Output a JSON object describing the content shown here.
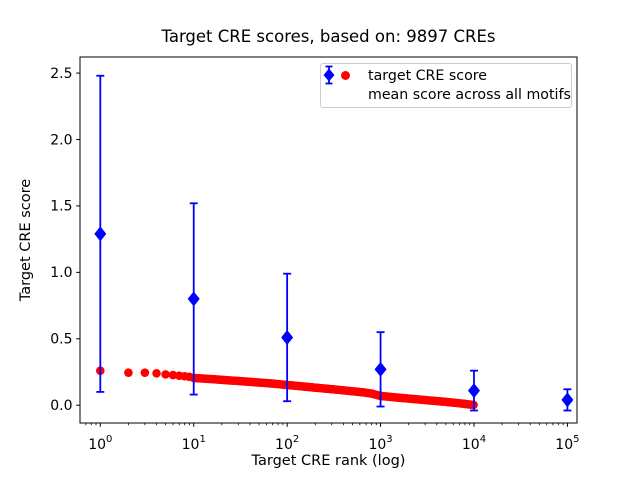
{
  "chart_data": {
    "type": "scatter",
    "title": "Target CRE scores, based on: 9897 CREs",
    "xlabel": "Target CRE rank (log)",
    "ylabel": "Target CRE score",
    "x_scale": "log",
    "xlim": [
      0.61,
      127000
    ],
    "ylim": [
      -0.13,
      2.62
    ],
    "x_tick_exponents": [
      0,
      1,
      2,
      3,
      4,
      5
    ],
    "y_ticks": [
      "0.0",
      "0.5",
      "1.0",
      "1.5",
      "2.0",
      "2.5"
    ],
    "grid": false,
    "n_cres": 9897,
    "legend": {
      "position": "upper right",
      "entries": [
        "target CRE score",
        "mean score across all motifs"
      ]
    },
    "colors": {
      "target": "#ff0000",
      "mean": "#0000ff",
      "axis": "#000000",
      "legend_border": "#cccccc"
    },
    "series": [
      {
        "name": "target CRE score",
        "type": "scatter",
        "marker": "circle",
        "color": "#ff0000",
        "n_points": 9897,
        "points_note": "control points (rank, score); full series of 9897 ranked CRE scores follows this smooth decreasing curve",
        "control_points": [
          [
            1,
            0.26
          ],
          [
            2,
            0.245
          ],
          [
            3,
            0.245
          ],
          [
            4,
            0.24
          ],
          [
            5,
            0.232
          ],
          [
            6,
            0.227
          ],
          [
            7,
            0.222
          ],
          [
            8,
            0.218
          ],
          [
            9,
            0.214
          ],
          [
            10,
            0.205
          ],
          [
            13,
            0.2
          ],
          [
            16,
            0.196
          ],
          [
            20,
            0.191
          ],
          [
            25,
            0.186
          ],
          [
            32,
            0.181
          ],
          [
            40,
            0.176
          ],
          [
            50,
            0.171
          ],
          [
            65,
            0.165
          ],
          [
            80,
            0.159
          ],
          [
            100,
            0.152
          ],
          [
            130,
            0.145
          ],
          [
            160,
            0.139
          ],
          [
            200,
            0.132
          ],
          [
            250,
            0.126
          ],
          [
            320,
            0.119
          ],
          [
            400,
            0.112
          ],
          [
            500,
            0.105
          ],
          [
            650,
            0.097
          ],
          [
            800,
            0.088
          ],
          [
            1000,
            0.07
          ],
          [
            1300,
            0.062
          ],
          [
            1600,
            0.056
          ],
          [
            2000,
            0.05
          ],
          [
            2500,
            0.044
          ],
          [
            3200,
            0.037
          ],
          [
            4000,
            0.031
          ],
          [
            5000,
            0.025
          ],
          [
            6500,
            0.017
          ],
          [
            8000,
            0.01
          ],
          [
            9897,
            0.002
          ]
        ]
      },
      {
        "name": "mean score across all motifs",
        "type": "errorbar",
        "marker": "diamond",
        "color": "#0000ff",
        "x": [
          1,
          10,
          100,
          1000,
          10000,
          100000
        ],
        "y": [
          1.29,
          0.8,
          0.51,
          0.27,
          0.11,
          0.04
        ],
        "yerr": [
          1.19,
          0.72,
          0.48,
          0.28,
          0.15,
          0.08
        ]
      }
    ]
  }
}
